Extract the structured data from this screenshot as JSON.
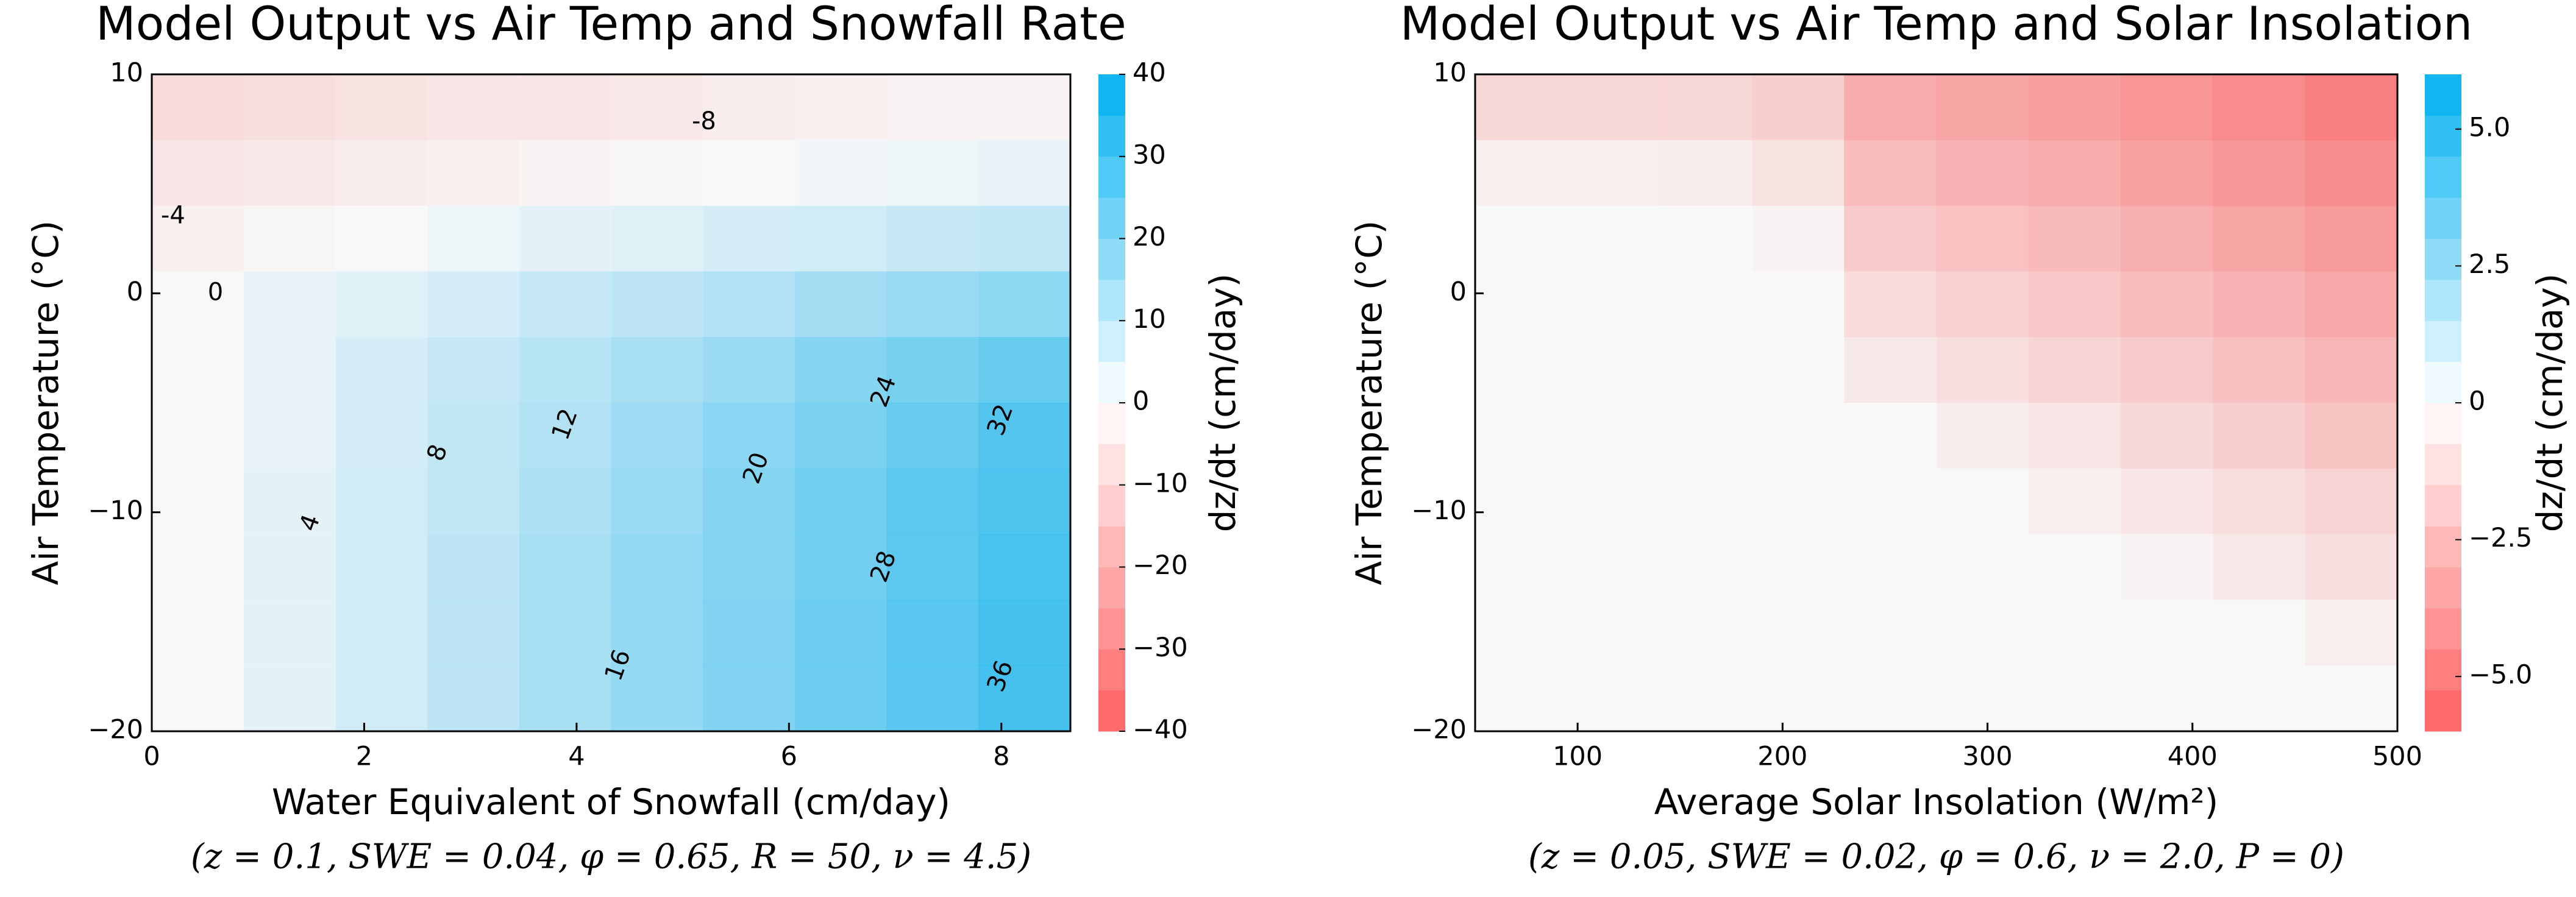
{
  "chart_data": [
    {
      "type": "heatmap",
      "title": "Model Output vs Air Temp and Snowfall Rate",
      "subtitle": "(z = 0.1, SWE = 0.04, φ = 0.65, R = 50, ν = 4.5)",
      "xlabel": "Water Equivalent of Snowfall (cm/day)",
      "ylabel": "Air Temperature (°C)",
      "xlim": [
        0,
        8.65
      ],
      "ylim": [
        -20,
        10
      ],
      "xticks": [
        0,
        2,
        4,
        6,
        8
      ],
      "yticks": [
        10,
        0,
        {
          "value": -10,
          "label": "−10"
        },
        {
          "value": -20,
          "label": "−20"
        }
      ],
      "x_edges": [
        0,
        0.865,
        1.73,
        2.595,
        3.46,
        4.325,
        5.19,
        6.055,
        6.92,
        7.785,
        8.65
      ],
      "y_edges": [
        10,
        7,
        4,
        1,
        -2,
        -5,
        -8,
        -11,
        -14,
        -17,
        -20
      ],
      "z": [
        [
          -9,
          -8,
          -7,
          -6,
          -6,
          -5,
          -4,
          -3,
          -2,
          -2
        ],
        [
          -6,
          -5,
          -4,
          -3,
          -2,
          -1,
          0,
          1,
          2,
          3
        ],
        [
          -3,
          -1,
          0,
          2,
          4,
          5,
          7,
          8,
          10,
          11
        ],
        [
          0,
          3,
          5,
          7,
          10,
          12,
          14,
          17,
          19,
          21
        ],
        [
          0,
          3,
          7,
          10,
          13,
          16,
          19,
          23,
          26,
          29
        ],
        [
          0,
          3,
          7,
          11,
          14,
          18,
          22,
          25,
          29,
          33
        ],
        [
          0,
          4,
          8,
          11,
          15,
          19,
          23,
          27,
          31,
          34
        ],
        [
          0,
          4,
          8,
          12,
          16,
          20,
          23,
          27,
          31,
          35
        ],
        [
          0,
          4,
          8,
          12,
          16,
          20,
          24,
          28,
          32,
          36
        ],
        [
          0,
          4,
          8,
          12,
          16,
          20,
          24,
          28,
          32,
          36
        ]
      ],
      "colors": [
        "#ff6060",
        "#ffffff",
        "#00b0f0"
      ],
      "colorbar": {
        "label": "dz/dt (cm/day)",
        "lim": [
          -40,
          40
        ],
        "ticks": [
          40,
          30,
          20,
          10,
          0,
          {
            "value": -10,
            "label": "−10"
          },
          {
            "value": -20,
            "label": "−20"
          },
          {
            "value": -30,
            "label": "−30"
          },
          {
            "value": -40,
            "label": "−40"
          }
        ]
      },
      "contour_labels": [
        {
          "value": -8,
          "x": 5.2,
          "y": 7.8
        },
        {
          "value": -4,
          "x": 0.2,
          "y": 3.5
        },
        {
          "value": 0,
          "x": 0.6,
          "y": 0
        },
        {
          "value": 4,
          "x": 1.5,
          "y": -10.5
        },
        {
          "value": 8,
          "x": 2.7,
          "y": -7.3
        },
        {
          "value": 12,
          "x": 3.9,
          "y": -6
        },
        {
          "value": 16,
          "x": 4.4,
          "y": -17
        },
        {
          "value": 20,
          "x": 5.7,
          "y": -8
        },
        {
          "value": 24,
          "x": 6.9,
          "y": -4.5
        },
        {
          "value": 28,
          "x": 6.9,
          "y": -12.5
        },
        {
          "value": 32,
          "x": 8.0,
          "y": -5.8
        },
        {
          "value": 36,
          "x": 8.0,
          "y": -17.5
        }
      ]
    },
    {
      "type": "heatmap",
      "title": "Model Output vs Air Temp and Solar Insolation",
      "subtitle": "(z = 0.05, SWE = 0.02, φ = 0.6, ν = 2.0, P = 0)",
      "xlabel": "Average Solar Insolation (W/m²)",
      "ylabel": "Air Temperature (°C)",
      "xlim": [
        50,
        500
      ],
      "ylim": [
        -20,
        10
      ],
      "xticks": [
        100,
        200,
        300,
        400,
        500
      ],
      "yticks": [
        10,
        0,
        {
          "value": -10,
          "label": "−10"
        },
        {
          "value": -20,
          "label": "−20"
        }
      ],
      "x_edges": [
        50,
        95,
        140,
        185,
        230,
        275,
        320,
        365,
        410,
        455,
        500
      ],
      "y_edges": [
        10,
        7,
        4,
        1,
        -2,
        -5,
        -8,
        -11,
        -14,
        -17,
        -20
      ],
      "z": [
        [
          -1.6,
          -1.6,
          -1.6,
          -2.0,
          -3.7,
          -4.0,
          -4.3,
          -4.8,
          -5.3,
          -5.8
        ],
        [
          -0.5,
          -0.5,
          -0.6,
          -1.1,
          -2.9,
          -3.3,
          -3.7,
          -4.2,
          -4.6,
          -5.1
        ],
        [
          0,
          0,
          0,
          -0.2,
          -2.2,
          -2.6,
          -3.0,
          -3.5,
          -4.0,
          -4.5
        ],
        [
          0,
          0,
          0,
          0,
          -1.4,
          -1.9,
          -2.3,
          -2.8,
          -3.3,
          -3.8
        ],
        [
          0,
          0,
          0,
          0,
          -0.7,
          -1.2,
          -1.7,
          -2.2,
          -2.7,
          -3.2
        ],
        [
          0,
          0,
          0,
          0,
          0,
          -0.6,
          -1.0,
          -1.5,
          -2.0,
          -2.5
        ],
        [
          0,
          0,
          0,
          0,
          0,
          0,
          -0.4,
          -0.9,
          -1.3,
          -1.8
        ],
        [
          0,
          0,
          0,
          0,
          0,
          0,
          0,
          -0.2,
          -0.7,
          -1.2
        ],
        [
          0,
          0,
          0,
          0,
          0,
          0,
          0,
          0,
          0,
          -0.5
        ],
        [
          0,
          0,
          0,
          0,
          0,
          0,
          0,
          0,
          0,
          0
        ]
      ],
      "colors": [
        "#ff6060",
        "#ffffff",
        "#00b0f0"
      ],
      "colorbar": {
        "label": "dz/dt (cm/day)",
        "lim": [
          -6,
          6
        ],
        "ticks": [
          {
            "value": 5,
            "label": "5.0"
          },
          2.5,
          0,
          {
            "value": -2.5,
            "label": "−2.5"
          },
          {
            "value": -5,
            "label": "−5.0"
          }
        ]
      }
    }
  ]
}
